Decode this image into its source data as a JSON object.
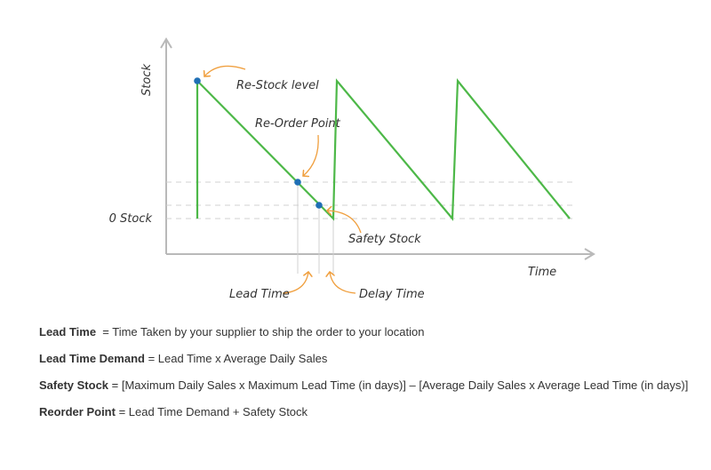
{
  "diagram": {
    "y_axis_label": "Stock",
    "x_axis_label": "Time",
    "zero_label": "0 Stock",
    "annotations": {
      "restock_level": "Re-Stock level",
      "reorder_point": "Re-Order Point",
      "safety_stock": "Safety Stock",
      "lead_time": "Lead Time",
      "delay_time": "Delay Time"
    },
    "colors": {
      "stock_line": "#4db848",
      "marker": "#1f6fb5",
      "arrow": "#f0a040",
      "axis": "#b9b9b9",
      "guide": "#d0d0d0"
    }
  },
  "definitions": [
    {
      "term": "Lead Time",
      "text": "  = Time Taken by your supplier to ship the order to your location"
    },
    {
      "term": "Lead Time Demand",
      "text": " = Lead Time x Average Daily Sales"
    },
    {
      "term": "Safety Stock",
      "text": " = [Maximum Daily Sales x Maximum Lead Time (in days)] – [Average Daily Sales x Average Lead Time (in days)]"
    },
    {
      "term": "Reorder Point",
      "text": " = Lead Time Demand + Safety Stock"
    }
  ]
}
